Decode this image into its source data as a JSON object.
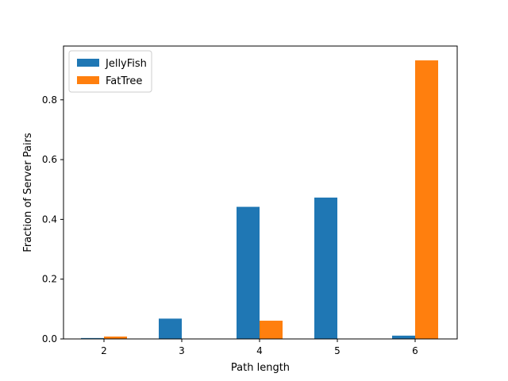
{
  "chart_data": {
    "type": "bar",
    "categories": [
      "2",
      "3",
      "4",
      "5",
      "6"
    ],
    "series": [
      {
        "name": "JellyFish",
        "color": "#1f77b4",
        "values": [
          0.003,
          0.068,
          0.442,
          0.473,
          0.011
        ]
      },
      {
        "name": "FatTree",
        "color": "#ff7f0e",
        "values": [
          0.008,
          0.0,
          0.061,
          0.0,
          0.932
        ]
      }
    ],
    "xlabel": "Path length",
    "ylabel": "Fraction of Server Pairs",
    "ylim": [
      0,
      0.98
    ],
    "yticks": [
      0.0,
      0.2,
      0.4,
      0.6,
      0.8
    ],
    "ytick_labels": [
      "0.0",
      "0.2",
      "0.4",
      "0.6",
      "0.8"
    ],
    "grid": false,
    "legend_position": "top-left"
  }
}
